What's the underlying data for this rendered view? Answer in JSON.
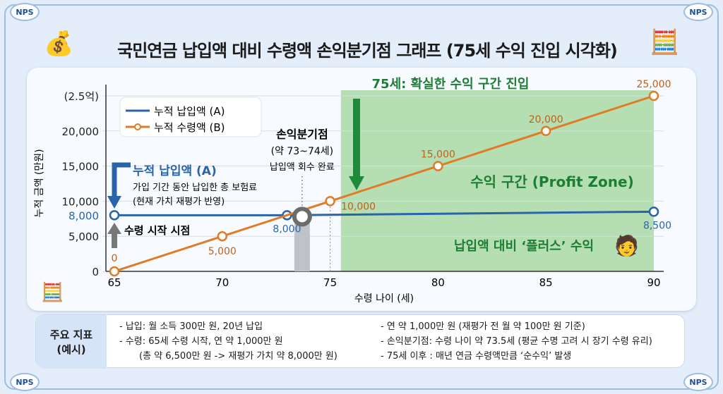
{
  "title": "국민연금 납입액 대비 수령액 손익분기점 그래프 (75세 수익 진입 시각화)",
  "logo": "NPS",
  "chart_data": {
    "type": "line",
    "xlabel": "수령 나이 (세)",
    "ylabel": "누적 금액 (만원)",
    "xlim": [
      65,
      90
    ],
    "ylim": [
      0,
      25000
    ],
    "x_ticks": [
      "65",
      "70",
      "75",
      "80",
      "85",
      "90"
    ],
    "y_ticks": [
      "0",
      "5,000",
      "8,000",
      "10,000",
      "15,000",
      "20,000",
      "(2.5억)"
    ],
    "grid": true,
    "legend_position": "top-left",
    "series": [
      {
        "name": "누적 납입액 (A)",
        "color": "#2a64a8",
        "x": [
          65,
          73,
          90
        ],
        "y": [
          8000,
          8000,
          8500
        ],
        "labels": [
          "",
          "8,000",
          "8,500"
        ]
      },
      {
        "name": "누적 수령액 (B)",
        "color": "#e07b26",
        "x": [
          65,
          70,
          75,
          80,
          85,
          90
        ],
        "y": [
          0,
          5000,
          10000,
          15000,
          20000,
          25000
        ],
        "labels": [
          "0",
          "5,000",
          "10,000",
          "15,000",
          "20,000",
          "25,000"
        ]
      }
    ],
    "breakeven": {
      "x": 73.7,
      "title": "손익분기점",
      "range": "(약 73~74세)",
      "note": "납입액 회수 완료"
    },
    "profit_zone": {
      "start": 75.5,
      "color": "#9fd69a",
      "label": "수익 구간 (Profit Zone)",
      "plus_label": "납입액 대비 ‘플러스’ 수익"
    },
    "annotations": {
      "green_header": "75세: 확실한 수익 구간 진입",
      "a_title": "누적 납입액 (A)",
      "a_desc1": "가입 기간 동안 납입한 총 보험료",
      "a_desc2": "(현재 가치 재평가 반영)",
      "start": "수령 시작 시점"
    }
  },
  "info": {
    "head1": "주요 지표",
    "head2": "(예시)",
    "left": [
      "- 납입: 월 소득 300만 원, 20년 납입",
      "- 수령: 65세 수령 시작, 연 약 1,000만 원",
      "(총 약 6,500만 원 -> 재평가 가치 약 8,000만 원)"
    ],
    "right": [
      "- 연 약 1,000만 원 (재평가 전 월 약 100만 원 기준)",
      "- 손익분기점: 수령 나이 약 73.5세 (평균 수명 고려 시 장기 수령 유리)",
      "- 75세 이후 : 매년 연금 수령액만큼 ‘순수익’ 발생"
    ]
  }
}
